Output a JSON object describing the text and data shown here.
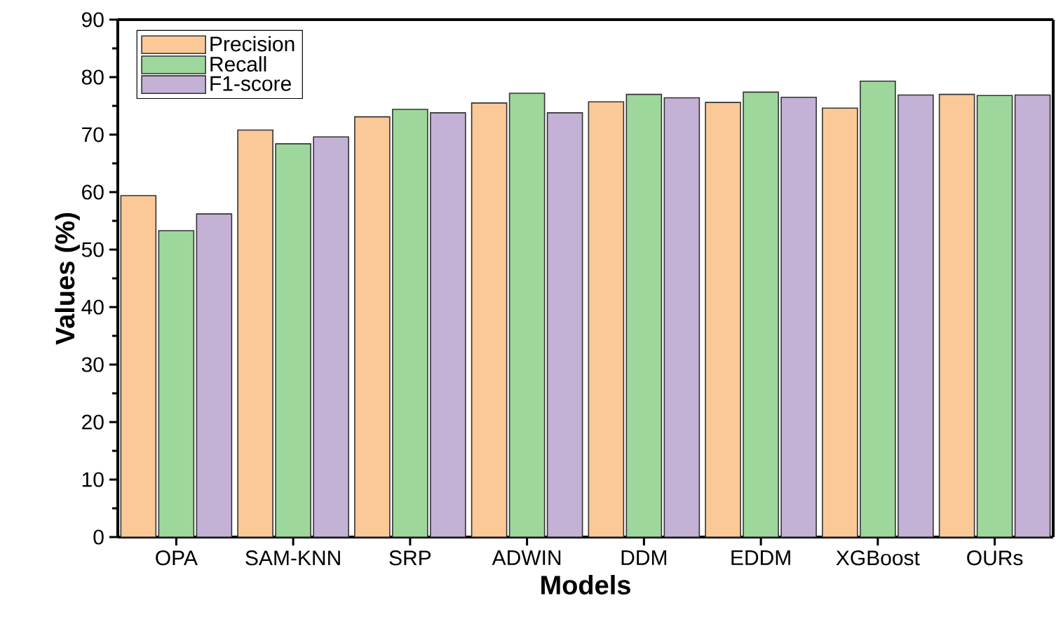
{
  "chart_data": {
    "type": "bar",
    "xlabel": "Models",
    "ylabel": "Values (%)",
    "categories": [
      "OPA",
      "SAM-KNN",
      "SRP",
      "ADWIN",
      "DDM",
      "EDDM",
      "XGBoost",
      "OURs"
    ],
    "series": [
      {
        "name": "Precision",
        "color": "#fbc897",
        "values": [
          59.4,
          70.8,
          73.1,
          75.5,
          75.7,
          75.6,
          74.6,
          77.0
        ]
      },
      {
        "name": "Recall",
        "color": "#9ed79c",
        "values": [
          53.3,
          68.4,
          74.4,
          77.2,
          77.0,
          77.4,
          79.3,
          76.8
        ]
      },
      {
        "name": "F1-score",
        "color": "#c3b1d6",
        "values": [
          56.2,
          69.6,
          73.8,
          73.8,
          76.4,
          76.5,
          76.9,
          76.9
        ]
      }
    ],
    "ylim": [
      0,
      90
    ],
    "yticks": [
      0,
      10,
      20,
      30,
      40,
      50,
      60,
      70,
      80,
      90
    ],
    "grid": false,
    "legend": "top left"
  }
}
